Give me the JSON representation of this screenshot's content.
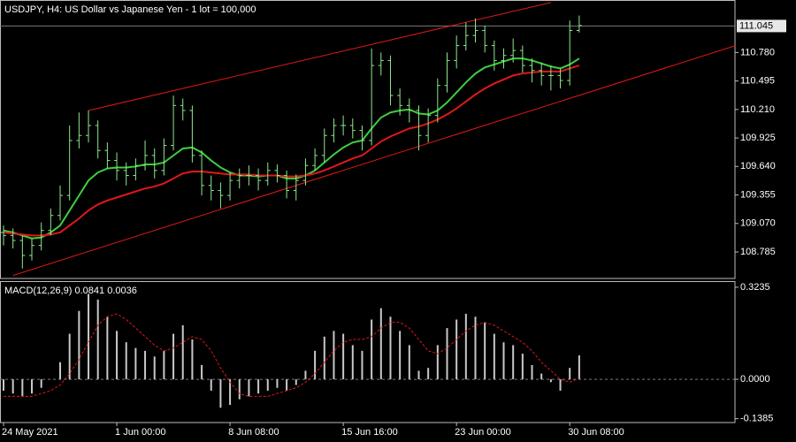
{
  "chart_data": [
    {
      "type": "ohlc",
      "title": "USDJPY, H4:  US Dollar vs Japanese Yen - 1 lot = 100,000",
      "categories": [
        "24 May 2021",
        null,
        null,
        null,
        null,
        null,
        null,
        null,
        null,
        null,
        null,
        null,
        "1 Jun 00:00",
        null,
        null,
        null,
        null,
        null,
        null,
        null,
        null,
        null,
        null,
        null,
        "8 Jun 08:00",
        null,
        null,
        null,
        null,
        null,
        null,
        null,
        null,
        null,
        null,
        null,
        "15 Jun 16:00",
        null,
        null,
        null,
        null,
        null,
        null,
        null,
        null,
        null,
        null,
        null,
        "23 Jun 00:00",
        null,
        null,
        null,
        null,
        null,
        null,
        null,
        null,
        null,
        null,
        null,
        "30 Jun 08:00",
        null
      ],
      "open": [
        108.98,
        108.95,
        108.9,
        108.75,
        108.85,
        109.0,
        109.15,
        109.35,
        109.9,
        109.95,
        110.05,
        109.8,
        109.7,
        109.6,
        109.55,
        109.65,
        109.75,
        109.6,
        109.85,
        110.25,
        110.2,
        109.75,
        109.45,
        109.4,
        109.35,
        109.5,
        109.55,
        109.55,
        109.5,
        109.6,
        109.55,
        109.4,
        109.5,
        109.65,
        109.75,
        109.95,
        110.05,
        110.05,
        110.0,
        109.9,
        110.65,
        110.7,
        110.35,
        110.25,
        110.2,
        109.95,
        110.15,
        110.45,
        110.7,
        110.85,
        110.95,
        111.0,
        110.85,
        110.7,
        110.75,
        110.8,
        110.65,
        110.6,
        110.55,
        110.55,
        110.5,
        111.0
      ],
      "high": [
        109.05,
        109.02,
        108.95,
        108.92,
        109.08,
        109.22,
        109.45,
        110.05,
        110.18,
        110.2,
        110.1,
        109.88,
        109.78,
        109.68,
        109.72,
        109.9,
        109.82,
        109.92,
        110.35,
        110.32,
        110.25,
        109.8,
        109.55,
        109.48,
        109.58,
        109.62,
        109.65,
        109.62,
        109.68,
        109.66,
        109.6,
        109.56,
        109.72,
        109.82,
        110.02,
        110.12,
        110.15,
        110.12,
        110.05,
        110.82,
        110.78,
        110.75,
        110.42,
        110.32,
        110.25,
        110.22,
        110.52,
        110.78,
        110.95,
        111.08,
        111.12,
        111.05,
        110.9,
        110.82,
        110.92,
        110.85,
        110.72,
        110.68,
        110.65,
        110.62,
        111.1,
        111.15
      ],
      "low": [
        108.85,
        108.82,
        108.62,
        108.7,
        108.8,
        108.95,
        109.1,
        109.3,
        109.82,
        109.88,
        109.72,
        109.62,
        109.5,
        109.45,
        109.5,
        109.6,
        109.52,
        109.55,
        109.8,
        110.1,
        109.68,
        109.35,
        109.3,
        109.22,
        109.3,
        109.42,
        109.45,
        109.4,
        109.45,
        109.48,
        109.32,
        109.3,
        109.45,
        109.6,
        109.68,
        109.88,
        109.95,
        109.92,
        109.8,
        109.85,
        110.55,
        110.25,
        110.15,
        110.08,
        109.8,
        109.88,
        110.08,
        110.38,
        110.62,
        110.8,
        110.88,
        110.78,
        110.6,
        110.62,
        110.68,
        110.58,
        110.48,
        110.45,
        110.4,
        110.42,
        110.45,
        110.98
      ],
      "close": [
        108.95,
        108.9,
        108.75,
        108.85,
        109.0,
        109.15,
        109.35,
        109.9,
        109.95,
        110.05,
        109.8,
        109.7,
        109.6,
        109.55,
        109.65,
        109.75,
        109.6,
        109.85,
        110.25,
        110.2,
        109.75,
        109.45,
        109.4,
        109.35,
        109.5,
        109.55,
        109.55,
        109.5,
        109.6,
        109.55,
        109.4,
        109.5,
        109.65,
        109.75,
        109.95,
        110.05,
        110.05,
        110.0,
        109.9,
        110.65,
        110.7,
        110.35,
        110.25,
        110.2,
        109.95,
        110.15,
        110.45,
        110.7,
        110.85,
        110.95,
        111.0,
        110.85,
        110.7,
        110.75,
        110.8,
        110.65,
        110.6,
        110.55,
        110.55,
        110.5,
        111.0,
        111.05
      ],
      "color": "#8ee88e",
      "series": [
        {
          "color": "#3ecf3e",
          "values": [
            109.0,
            108.98,
            108.95,
            108.92,
            108.93,
            108.98,
            109.05,
            109.2,
            109.35,
            109.5,
            109.58,
            109.62,
            109.63,
            109.63,
            109.64,
            109.66,
            109.66,
            109.68,
            109.75,
            109.82,
            109.83,
            109.78,
            109.7,
            109.63,
            109.58,
            109.55,
            109.55,
            109.54,
            109.55,
            109.55,
            109.52,
            109.52,
            109.55,
            109.6,
            109.68,
            109.76,
            109.83,
            109.88,
            109.9,
            110.02,
            110.13,
            110.18,
            110.2,
            110.21,
            110.17,
            110.16,
            110.2,
            110.28,
            110.38,
            110.48,
            110.57,
            110.63,
            110.66,
            110.69,
            110.72,
            110.72,
            110.7,
            110.67,
            110.64,
            110.62,
            110.66,
            110.72
          ]
        },
        {
          "color": "#e01818",
          "values": [
            108.98,
            108.97,
            108.96,
            108.95,
            108.95,
            108.96,
            108.98,
            109.05,
            109.12,
            109.2,
            109.26,
            109.3,
            109.33,
            109.36,
            109.39,
            109.42,
            109.44,
            109.47,
            109.52,
            109.57,
            109.59,
            109.59,
            109.58,
            109.57,
            109.56,
            109.56,
            109.56,
            109.55,
            109.55,
            109.55,
            109.54,
            109.54,
            109.55,
            109.57,
            109.6,
            109.64,
            109.68,
            109.72,
            109.75,
            109.82,
            109.89,
            109.94,
            109.98,
            110.02,
            110.04,
            110.07,
            110.11,
            110.16,
            110.22,
            110.29,
            110.36,
            110.42,
            110.47,
            110.51,
            110.55,
            110.57,
            110.58,
            110.59,
            110.59,
            110.59,
            110.62,
            110.65
          ]
        }
      ],
      "channel": {
        "color": "#e01818",
        "upper": {
          "x": [
            9,
            58
          ],
          "y": [
            110.2,
            111.28
          ]
        },
        "lower": {
          "x": [
            1,
            77.6
          ],
          "y": [
            108.55,
            110.85
          ]
        }
      },
      "current_price": 111.045,
      "ylim": [
        108.52,
        111.305
      ],
      "yticks": [
        108.785,
        {
          "value": 109.07,
          "label": "109.070"
        },
        109.355,
        {
          "value": 109.64,
          "label": "109.640"
        },
        109.925,
        {
          "value": 110.21,
          "label": "110.210"
        },
        110.495,
        {
          "value": 110.78,
          "label": "110.780"
        }
      ]
    },
    {
      "type": "macd",
      "indicator": "MACD(12,26,9)",
      "histogram": {
        "color": "#c8c8c8",
        "values": [
          -0.04,
          -0.05,
          -0.06,
          -0.05,
          -0.03,
          0.0,
          0.06,
          0.16,
          0.24,
          0.3,
          0.28,
          0.22,
          0.17,
          0.13,
          0.11,
          0.1,
          0.08,
          0.1,
          0.16,
          0.19,
          0.14,
          0.05,
          -0.04,
          -0.1,
          -0.09,
          -0.07,
          -0.06,
          -0.05,
          -0.04,
          -0.03,
          -0.04,
          -0.02,
          0.03,
          0.1,
          0.15,
          0.17,
          0.16,
          0.12,
          0.1,
          0.21,
          0.25,
          0.22,
          0.17,
          0.12,
          0.03,
          0.04,
          0.12,
          0.18,
          0.21,
          0.23,
          0.22,
          0.2,
          0.16,
          0.13,
          0.12,
          0.09,
          0.05,
          0.02,
          -0.01,
          -0.04,
          0.04,
          0.0841
        ]
      },
      "signal": {
        "color": "#e01818",
        "values": [
          -0.06,
          -0.06,
          -0.06,
          -0.06,
          -0.05,
          -0.04,
          -0.02,
          0.02,
          0.07,
          0.13,
          0.19,
          0.22,
          0.23,
          0.21,
          0.18,
          0.15,
          0.12,
          0.1,
          0.11,
          0.13,
          0.15,
          0.14,
          0.1,
          0.04,
          -0.01,
          -0.05,
          -0.06,
          -0.06,
          -0.06,
          -0.05,
          -0.04,
          -0.03,
          -0.01,
          0.02,
          0.06,
          0.1,
          0.13,
          0.14,
          0.14,
          0.15,
          0.18,
          0.2,
          0.2,
          0.18,
          0.14,
          0.1,
          0.09,
          0.11,
          0.14,
          0.17,
          0.19,
          0.2,
          0.19,
          0.17,
          0.15,
          0.13,
          0.1,
          0.06,
          0.03,
          0.0,
          -0.01,
          0.0036
        ]
      },
      "ylim": [
        -0.152,
        0.345
      ],
      "yticks": [
        0.3235,
        {
          "value": 0,
          "label": "0.0000"
        },
        -0.1385
      ]
    }
  ]
}
